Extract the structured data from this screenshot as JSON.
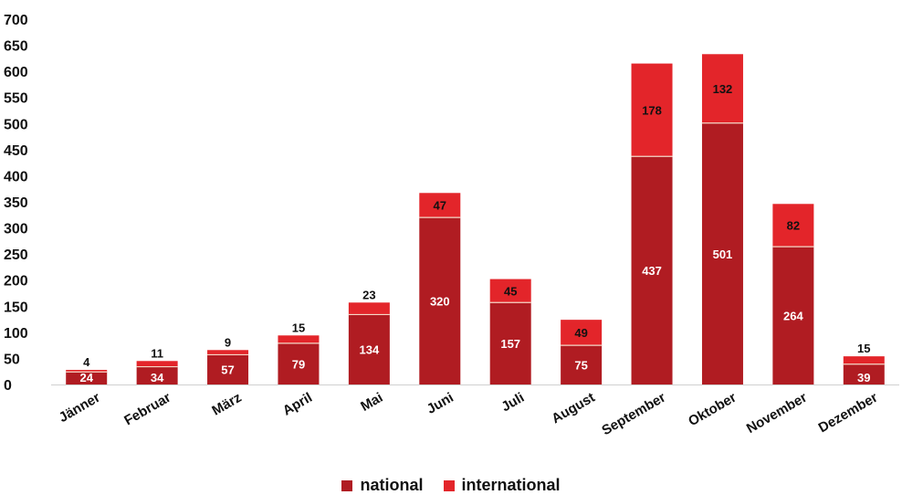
{
  "chart_data": {
    "type": "bar",
    "stacked": true,
    "title": "",
    "xlabel": "",
    "ylabel": "",
    "ylim": [
      0,
      700
    ],
    "yticks": [
      0,
      50,
      100,
      150,
      200,
      250,
      300,
      350,
      400,
      450,
      500,
      550,
      600,
      650,
      700
    ],
    "grid": false,
    "legend_position": "bottom",
    "categories": [
      "Jänner",
      "Februar",
      "März",
      "April",
      "Mai",
      "Juni",
      "Juli",
      "August",
      "September",
      "Oktober",
      "November",
      "Dezember"
    ],
    "series": [
      {
        "name": "national",
        "color": "#b01c22",
        "values": [
          24,
          34,
          57,
          79,
          134,
          320,
          157,
          75,
          437,
          501,
          264,
          39
        ]
      },
      {
        "name": "international",
        "color": "#e3252a",
        "values": [
          4,
          11,
          9,
          15,
          23,
          47,
          45,
          49,
          178,
          132,
          82,
          15
        ]
      }
    ]
  }
}
